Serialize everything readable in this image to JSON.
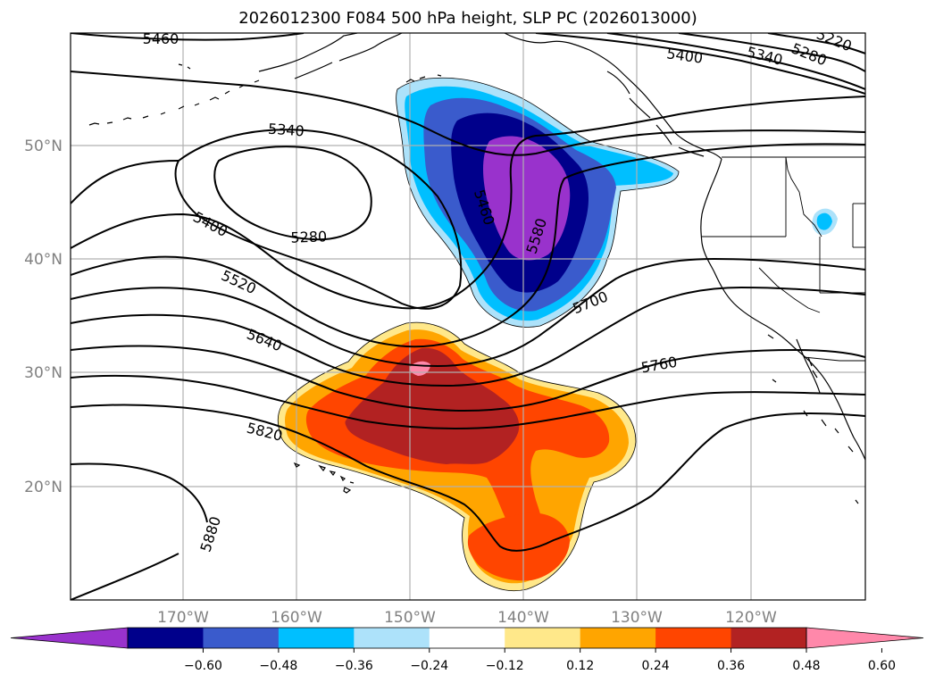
{
  "title": "2026012300 F084 500 hPa height, SLP PC (2026013000)",
  "latitude_labels": [
    "50°N",
    "40°N",
    "30°N",
    "20°N"
  ],
  "longitude_labels": [
    "170°W",
    "160°W",
    "150°W",
    "140°W",
    "130°W",
    "120°W"
  ],
  "contour_labels": [
    "5460",
    "5400",
    "5340",
    "5280",
    "5220",
    "5340",
    "5280",
    "5400",
    "5520",
    "5640",
    "5820",
    "5880",
    "5460",
    "5580",
    "5700",
    "5760"
  ],
  "colorbar": {
    "tick_labels": [
      "−0.60",
      "−0.48",
      "−0.36",
      "−0.24",
      "−0.12",
      "0.12",
      "0.24",
      "0.36",
      "0.48",
      "0.60"
    ],
    "colors": [
      "#9932cc",
      "#00008b",
      "#3a5bcc",
      "#00bfff",
      "#ade2fa",
      "#ffffff",
      "#ffe88a",
      "#ffa500",
      "#ff4500",
      "#b22222",
      "#ff88aa"
    ]
  }
}
